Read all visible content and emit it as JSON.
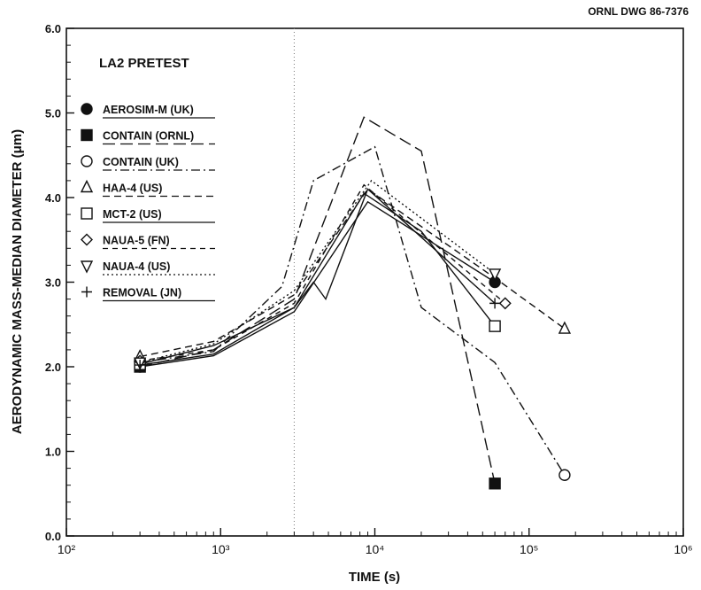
{
  "drawing_id": "ORNL DWG 86-7376",
  "chart_data": {
    "type": "line",
    "title": "LA2 PRETEST",
    "xlabel": "TIME (s)",
    "ylabel": "AERODYNAMIC MASS-MEDIAN DIAMETER (μm)",
    "x_scale": "log",
    "xlim": [
      100,
      1000000
    ],
    "ylim": [
      0.0,
      6.0
    ],
    "x_ticks": [
      {
        "value": 100,
        "label": "10²"
      },
      {
        "value": 1000,
        "label": "10³"
      },
      {
        "value": 10000,
        "label": "10⁴"
      },
      {
        "value": 100000,
        "label": "10⁵"
      },
      {
        "value": 1000000,
        "label": "10⁶"
      }
    ],
    "y_ticks": [
      "0.0",
      "1.0",
      "2.0",
      "3.0",
      "4.0",
      "5.0",
      "6.0"
    ],
    "grid": false,
    "reference_line_x": 3000,
    "legend_position": "top-left",
    "series": [
      {
        "name": "AEROSIM-M (UK)",
        "marker": "filled-circle",
        "dash": "",
        "points": [
          [
            300,
            2.0
          ],
          [
            900,
            2.13
          ],
          [
            3000,
            2.65
          ],
          [
            9000,
            3.95
          ],
          [
            60000,
            3.0
          ]
        ]
      },
      {
        "name": "CONTAIN (ORNL)",
        "marker": "filled-square",
        "dash": "14,6",
        "points": [
          [
            300,
            2.0
          ],
          [
            900,
            2.2
          ],
          [
            3000,
            2.8
          ],
          [
            8500,
            4.95
          ],
          [
            20000,
            4.55
          ],
          [
            60000,
            0.62
          ]
        ]
      },
      {
        "name": "CONTAIN (UK)",
        "marker": "open-circle",
        "dash": "10,4,2,4",
        "points": [
          [
            300,
            2.05
          ],
          [
            900,
            2.18
          ],
          [
            2500,
            2.95
          ],
          [
            4000,
            4.2
          ],
          [
            10000,
            4.6
          ],
          [
            20000,
            2.7
          ],
          [
            60000,
            2.05
          ],
          [
            170000,
            0.72
          ]
        ]
      },
      {
        "name": "HAA-4 (US)",
        "marker": "open-triangle-up",
        "dash": "8,5",
        "points": [
          [
            300,
            2.12
          ],
          [
            900,
            2.3
          ],
          [
            3000,
            2.85
          ],
          [
            9000,
            4.1
          ],
          [
            60000,
            3.05
          ],
          [
            170000,
            2.45
          ]
        ]
      },
      {
        "name": "MCT-2 (US)",
        "marker": "open-square",
        "dash": "",
        "points": [
          [
            300,
            2.03
          ],
          [
            900,
            2.25
          ],
          [
            3000,
            2.7
          ],
          [
            8500,
            4.05
          ],
          [
            20000,
            3.6
          ],
          [
            60000,
            2.48
          ]
        ]
      },
      {
        "name": "NAUA-5 (FN)",
        "marker": "open-diamond",
        "dash": "6,5",
        "points": [
          [
            300,
            2.07
          ],
          [
            900,
            2.2
          ],
          [
            3000,
            2.75
          ],
          [
            8500,
            4.15
          ],
          [
            70000,
            2.75
          ]
        ]
      },
      {
        "name": "NAUA-4 (US)",
        "marker": "open-triangle-down",
        "dash": "2,3",
        "points": [
          [
            300,
            2.05
          ],
          [
            900,
            2.27
          ],
          [
            3000,
            2.9
          ],
          [
            9500,
            4.2
          ],
          [
            60000,
            3.1
          ]
        ]
      },
      {
        "name": "REMOVAL (JN)",
        "marker": "plus",
        "dash": "",
        "points": [
          [
            300,
            2.02
          ],
          [
            900,
            2.15
          ],
          [
            3000,
            2.7
          ],
          [
            4000,
            3.0
          ],
          [
            4800,
            2.8
          ],
          [
            9000,
            4.1
          ],
          [
            60000,
            2.75
          ]
        ]
      }
    ]
  }
}
